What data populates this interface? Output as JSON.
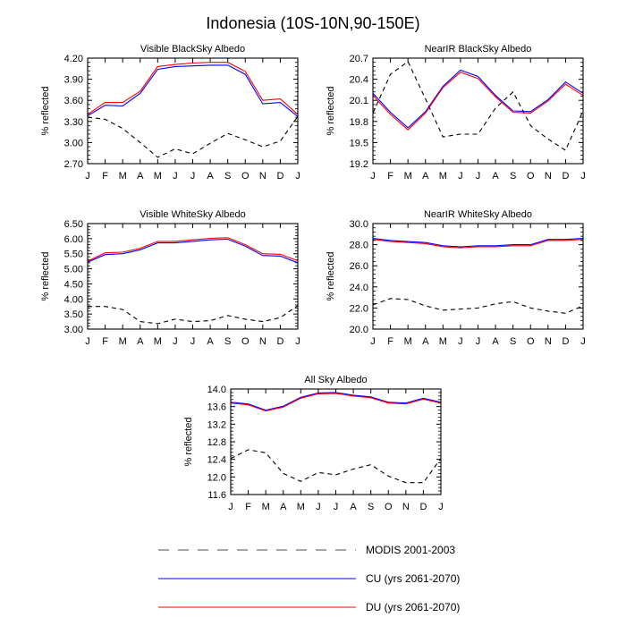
{
  "figure_title": "Indonesia (10S-10N,90-150E)",
  "colors": {
    "modis": "#000000",
    "cu": "#0000ff",
    "du": "#ff0000"
  },
  "chart_data": [
    {
      "id": "vis-bsa",
      "type": "line",
      "title": "Visible BlackSky Albedo",
      "ylabel": "% reflected",
      "categories": [
        "J",
        "F",
        "M",
        "A",
        "M",
        "J",
        "J",
        "A",
        "S",
        "O",
        "N",
        "D",
        "J"
      ],
      "ylim": [
        2.7,
        4.2
      ],
      "yticks": [
        "4.20",
        "3.90",
        "3.60",
        "3.30",
        "3.00",
        "2.70"
      ],
      "series": [
        {
          "name": "MODIS 2001-2003",
          "values": [
            3.36,
            3.33,
            3.2,
            3.0,
            2.79,
            2.91,
            2.84,
            2.99,
            3.13,
            3.04,
            2.94,
            3.02,
            3.37
          ]
        },
        {
          "name": "CU (yrs 2061-2070)",
          "values": [
            3.38,
            3.53,
            3.52,
            3.7,
            4.04,
            4.08,
            4.09,
            4.1,
            4.1,
            3.97,
            3.55,
            3.57,
            3.37
          ]
        },
        {
          "name": "DU (yrs 2061-2070)",
          "values": [
            3.4,
            3.57,
            3.57,
            3.73,
            4.08,
            4.11,
            4.13,
            4.14,
            4.14,
            4.01,
            3.6,
            3.62,
            3.4
          ]
        }
      ]
    },
    {
      "id": "nir-bsa",
      "type": "line",
      "title": "NearIR BlackSky Albedo",
      "ylabel": "% reflected",
      "categories": [
        "J",
        "F",
        "M",
        "A",
        "M",
        "J",
        "J",
        "A",
        "S",
        "O",
        "N",
        "D",
        "J"
      ],
      "ylim": [
        19.2,
        20.7
      ],
      "yticks": [
        "20.7",
        "20.4",
        "20.1",
        "19.8",
        "19.5",
        "19.2"
      ],
      "series": [
        {
          "name": "MODIS 2001-2003",
          "values": [
            19.92,
            20.47,
            20.65,
            20.12,
            19.58,
            19.62,
            19.62,
            19.99,
            20.22,
            19.74,
            19.55,
            19.39,
            19.95
          ]
        },
        {
          "name": "CU (yrs 2061-2070)",
          "values": [
            20.2,
            19.93,
            19.71,
            19.94,
            20.3,
            20.53,
            20.44,
            20.17,
            19.95,
            19.94,
            20.11,
            20.36,
            20.2
          ]
        },
        {
          "name": "DU (yrs 2061-2070)",
          "values": [
            20.17,
            19.9,
            19.68,
            19.92,
            20.28,
            20.5,
            20.41,
            20.15,
            19.93,
            19.92,
            20.09,
            20.33,
            20.17
          ]
        }
      ]
    },
    {
      "id": "vis-wsa",
      "type": "line",
      "title": "Visible WhiteSky Albedo",
      "ylabel": "% reflected",
      "categories": [
        "J",
        "F",
        "M",
        "A",
        "M",
        "J",
        "J",
        "A",
        "S",
        "O",
        "N",
        "D",
        "J"
      ],
      "ylim": [
        3.0,
        6.5
      ],
      "yticks": [
        "6.50",
        "6.00",
        "5.50",
        "5.00",
        "4.50",
        "4.00",
        "3.50",
        "3.00"
      ],
      "series": [
        {
          "name": "MODIS 2001-2003",
          "values": [
            3.75,
            3.75,
            3.65,
            3.25,
            3.18,
            3.33,
            3.25,
            3.28,
            3.45,
            3.33,
            3.25,
            3.38,
            3.78
          ]
        },
        {
          "name": "CU (yrs 2061-2070)",
          "values": [
            5.22,
            5.47,
            5.5,
            5.63,
            5.86,
            5.86,
            5.91,
            5.96,
            5.98,
            5.75,
            5.44,
            5.42,
            5.2
          ]
        },
        {
          "name": "DU (yrs 2061-2070)",
          "values": [
            5.25,
            5.53,
            5.55,
            5.68,
            5.91,
            5.91,
            5.96,
            6.01,
            6.03,
            5.8,
            5.5,
            5.48,
            5.27
          ]
        }
      ]
    },
    {
      "id": "nir-wsa",
      "type": "line",
      "title": "NearIR WhiteSky Albedo",
      "ylabel": "% reflected",
      "categories": [
        "J",
        "F",
        "M",
        "A",
        "M",
        "J",
        "J",
        "A",
        "S",
        "O",
        "N",
        "D",
        "J"
      ],
      "ylim": [
        20.0,
        30.0
      ],
      "yticks": [
        "30.0",
        "28.0",
        "26.0",
        "24.0",
        "22.0",
        "20.0"
      ],
      "series": [
        {
          "name": "MODIS 2001-2003",
          "values": [
            22.3,
            22.9,
            22.8,
            22.2,
            21.8,
            21.9,
            22.0,
            22.4,
            22.6,
            22.0,
            21.7,
            21.5,
            22.2
          ]
        },
        {
          "name": "CU (yrs 2061-2070)",
          "values": [
            28.6,
            28.4,
            28.3,
            28.2,
            27.9,
            27.8,
            27.9,
            27.9,
            28.0,
            28.0,
            28.5,
            28.5,
            28.6
          ]
        },
        {
          "name": "DU (yrs 2061-2070)",
          "values": [
            28.5,
            28.3,
            28.2,
            28.1,
            27.8,
            27.7,
            27.8,
            27.8,
            27.9,
            27.9,
            28.4,
            28.4,
            28.5
          ]
        }
      ]
    },
    {
      "id": "all-sky",
      "type": "line",
      "title": "All Sky Albedo",
      "ylabel": "% reflected",
      "categories": [
        "J",
        "F",
        "M",
        "A",
        "M",
        "J",
        "J",
        "A",
        "S",
        "O",
        "N",
        "D",
        "J"
      ],
      "ylim": [
        11.6,
        14.0
      ],
      "yticks": [
        "14.0",
        "13.6",
        "13.2",
        "12.8",
        "12.4",
        "12.0",
        "11.6"
      ],
      "series": [
        {
          "name": "MODIS 2001-2003",
          "values": [
            12.42,
            12.62,
            12.55,
            12.08,
            11.9,
            12.1,
            12.05,
            12.18,
            12.28,
            12.02,
            11.87,
            11.87,
            12.42
          ]
        },
        {
          "name": "CU (yrs 2061-2070)",
          "values": [
            13.7,
            13.66,
            13.52,
            13.61,
            13.81,
            13.91,
            13.92,
            13.86,
            13.82,
            13.7,
            13.68,
            13.79,
            13.7
          ]
        },
        {
          "name": "DU (yrs 2061-2070)",
          "values": [
            13.68,
            13.64,
            13.5,
            13.59,
            13.79,
            13.89,
            13.9,
            13.84,
            13.8,
            13.68,
            13.66,
            13.77,
            13.68
          ]
        }
      ]
    }
  ],
  "legend": [
    {
      "label": "MODIS 2001-2003",
      "style": "dashed",
      "color": "#000000"
    },
    {
      "label": "CU (yrs 2061-2070)",
      "style": "solid",
      "color": "#0000ff"
    },
    {
      "label": "DU (yrs 2061-2070)",
      "style": "solid",
      "color": "#ff0000"
    }
  ]
}
